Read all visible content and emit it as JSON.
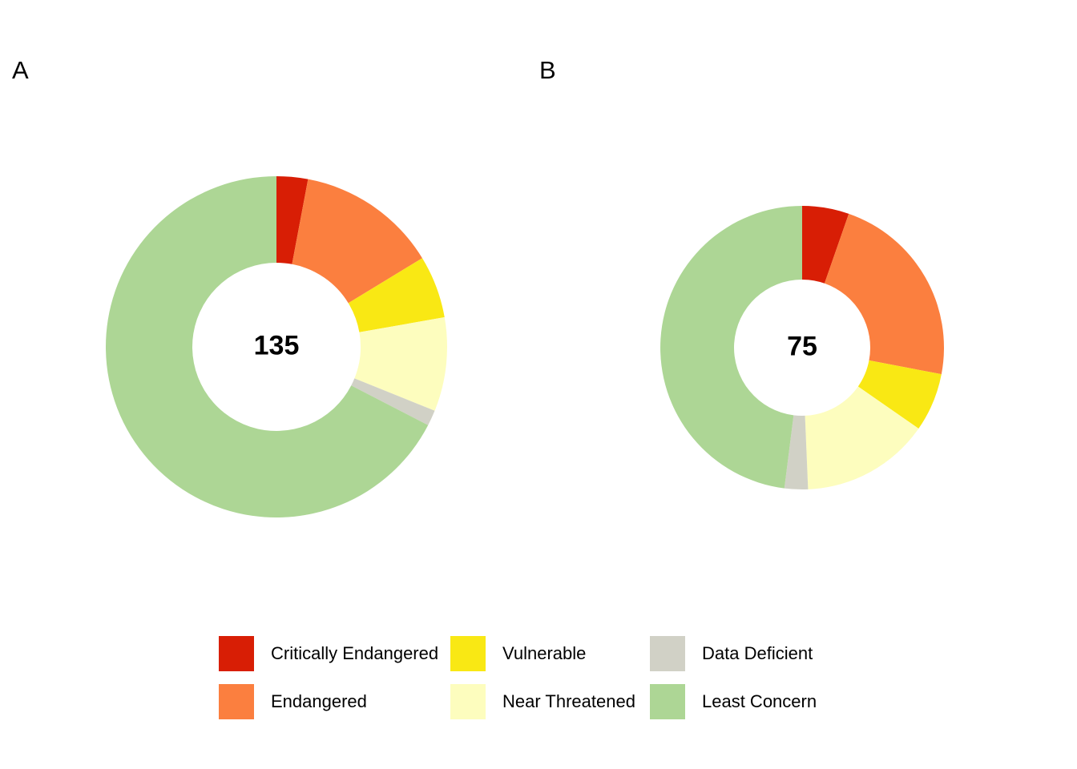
{
  "figure": {
    "background": "#FFFFFF",
    "panels": [
      {
        "label": "A"
      },
      {
        "label": "B"
      }
    ]
  },
  "chart_data": [
    {
      "type": "pie",
      "subtype": "donut",
      "panel_label": "A",
      "center_label": "135",
      "total": 135,
      "categories": [
        "Critically Endangered",
        "Endangered",
        "Vulnerable",
        "Near Threatened",
        "Data Deficient",
        "Least Concern"
      ],
      "values": [
        4,
        18,
        8,
        12,
        2,
        91
      ],
      "colors": [
        "#D81E05",
        "#FB7F3F",
        "#F9E814",
        "#FDFDBE",
        "#D1D1C6",
        "#ADD695"
      ],
      "start_angle_deg": 0,
      "direction": "clockwise",
      "outer_radius_px": 213,
      "inner_radius_px": 105,
      "legend_position": "bottom"
    },
    {
      "type": "pie",
      "subtype": "donut",
      "panel_label": "B",
      "center_label": "75",
      "total": 75,
      "categories": [
        "Critically Endangered",
        "Endangered",
        "Vulnerable",
        "Near Threatened",
        "Data Deficient",
        "Least Concern"
      ],
      "values": [
        4,
        17,
        5,
        11,
        2,
        36
      ],
      "colors": [
        "#D81E05",
        "#FB7F3F",
        "#F9E814",
        "#FDFDBE",
        "#D1D1C6",
        "#ADD695"
      ],
      "start_angle_deg": 0,
      "direction": "clockwise",
      "outer_radius_px": 177,
      "inner_radius_px": 85,
      "legend_position": "bottom"
    }
  ],
  "legend": {
    "items": [
      {
        "label": "Critically Endangered",
        "color": "#D81E05"
      },
      {
        "label": "Endangered",
        "color": "#FB7F3F"
      },
      {
        "label": "Vulnerable",
        "color": "#F9E814"
      },
      {
        "label": "Near Threatened",
        "color": "#FDFDBE"
      },
      {
        "label": "Data Deficient",
        "color": "#D1D1C6"
      },
      {
        "label": "Least Concern",
        "color": "#ADD695"
      }
    ]
  }
}
